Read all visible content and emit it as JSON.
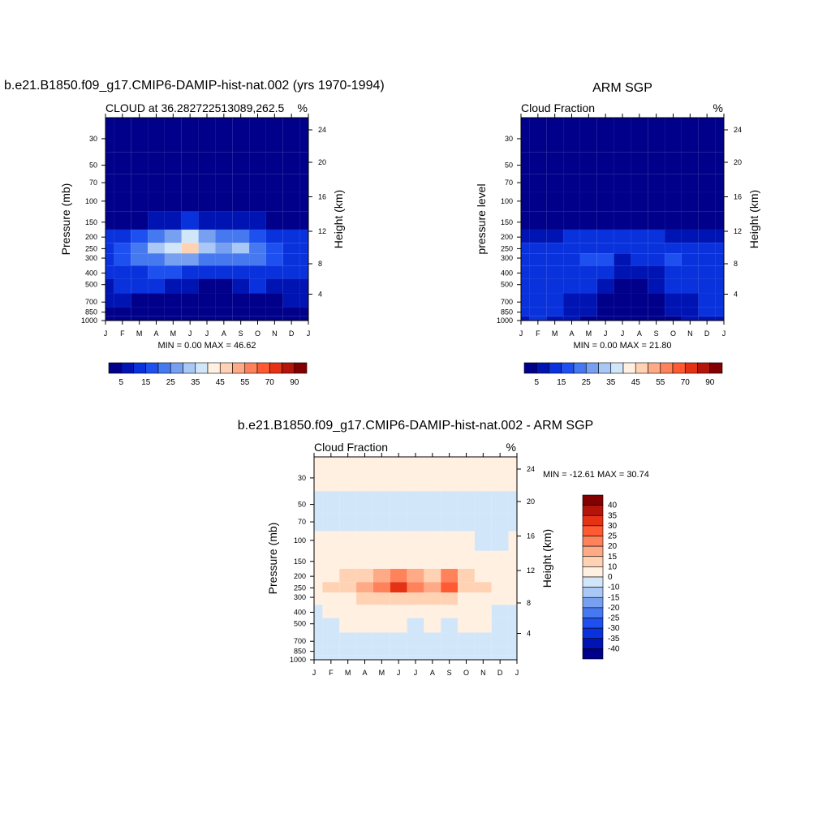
{
  "chart_data": [
    {
      "type": "heatmap",
      "panel": "model",
      "title": "b.e21.B1850.f09_g17.CMIP6-DAMIP-hist-nat.002 (yrs 1970-1994)",
      "subtitle": "CLOUD at 36.282722513089,262.5",
      "units": "%",
      "xlabel": "",
      "ylabel_left": "Pressure (mb)",
      "ylabel_right": "Height (km)",
      "x_ticks": [
        "J",
        "F",
        "M",
        "A",
        "M",
        "J",
        "J",
        "A",
        "S",
        "O",
        "N",
        "D",
        "J"
      ],
      "y_ticks_left": [
        "30",
        "50",
        "70",
        "100",
        "150",
        "200",
        "250",
        "300",
        "400",
        "500",
        "700",
        "850",
        "1000"
      ],
      "y_ticks_right": [
        "24",
        "20",
        "16",
        "12",
        "8",
        "4"
      ],
      "stats": "MIN =   0.00 MAX =  46.62",
      "min": 0.0,
      "max": 46.62,
      "colorbar_levels": [
        0,
        5,
        10,
        15,
        20,
        25,
        30,
        35,
        40,
        45,
        50,
        55,
        60,
        70,
        80,
        90
      ],
      "colorbar_labels": [
        "5",
        "15",
        "25",
        "35",
        "45",
        "55",
        "70",
        "90"
      ],
      "colorbar_colors": [
        "#00008a",
        "#0014b4",
        "#0a32dc",
        "#1e50f0",
        "#4678f0",
        "#78a0f0",
        "#aac8f5",
        "#d2e6fa",
        "#fff0e1",
        "#ffd2b4",
        "#ffaa87",
        "#ff825a",
        "#ff5a32",
        "#e63214",
        "#b4140a",
        "#820000"
      ],
      "months": [
        "J",
        "F",
        "M",
        "A",
        "M",
        "J",
        "J",
        "A",
        "S",
        "O",
        "N",
        "D",
        "J"
      ],
      "levels_mb": [
        30,
        50,
        70,
        100,
        150,
        200,
        250,
        300,
        400,
        500,
        700,
        850,
        1000
      ],
      "values": [
        [
          0,
          0,
          0,
          0,
          0,
          0,
          0,
          0,
          0,
          0,
          0,
          0,
          0
        ],
        [
          0,
          0,
          0,
          0,
          0,
          0,
          0,
          0,
          0,
          0,
          0,
          0,
          0
        ],
        [
          0,
          0,
          0,
          0,
          0,
          0,
          0,
          0,
          0,
          0,
          0,
          0,
          0
        ],
        [
          0,
          0,
          0,
          0,
          0,
          0,
          0,
          0,
          0,
          0,
          0,
          0,
          0
        ],
        [
          3,
          3,
          4,
          6,
          8,
          10,
          9,
          7,
          8,
          6,
          4,
          3,
          3
        ],
        [
          12,
          14,
          18,
          22,
          28,
          35,
          25,
          20,
          22,
          18,
          14,
          12,
          12
        ],
        [
          14,
          18,
          24,
          30,
          38,
          45,
          32,
          26,
          30,
          22,
          18,
          14,
          14
        ],
        [
          12,
          16,
          20,
          24,
          28,
          28,
          24,
          20,
          22,
          20,
          16,
          12,
          12
        ],
        [
          10,
          12,
          14,
          16,
          16,
          14,
          10,
          10,
          12,
          14,
          12,
          10,
          10
        ],
        [
          8,
          10,
          10,
          10,
          8,
          6,
          4,
          4,
          6,
          10,
          8,
          8,
          8
        ],
        [
          6,
          6,
          4,
          4,
          2,
          2,
          1,
          1,
          2,
          4,
          4,
          6,
          6
        ],
        [
          4,
          4,
          3,
          3,
          2,
          2,
          1,
          1,
          1,
          3,
          3,
          4,
          4
        ],
        [
          2,
          2,
          2,
          2,
          1,
          1,
          1,
          1,
          1,
          2,
          2,
          2,
          2
        ]
      ]
    },
    {
      "type": "heatmap",
      "panel": "obs",
      "title": "ARM SGP",
      "subtitle": "Cloud Fraction",
      "units": "%",
      "xlabel": "",
      "ylabel_left": "pressure level",
      "ylabel_right": "Height (km)",
      "x_ticks": [
        "J",
        "F",
        "M",
        "A",
        "M",
        "J",
        "J",
        "A",
        "S",
        "O",
        "N",
        "D",
        "J"
      ],
      "y_ticks_left": [
        "30",
        "50",
        "70",
        "100",
        "150",
        "200",
        "250",
        "300",
        "400",
        "500",
        "700",
        "850",
        "1000"
      ],
      "y_ticks_right": [
        "24",
        "20",
        "16",
        "12",
        "8",
        "4"
      ],
      "stats": "MIN =   0.00 MAX =  21.80",
      "min": 0.0,
      "max": 21.8,
      "colorbar_levels": [
        0,
        5,
        10,
        15,
        20,
        25,
        30,
        35,
        40,
        45,
        50,
        55,
        60,
        70,
        80,
        90
      ],
      "colorbar_labels": [
        "5",
        "15",
        "25",
        "35",
        "45",
        "55",
        "70",
        "90"
      ],
      "colorbar_colors": [
        "#00008a",
        "#0014b4",
        "#0a32dc",
        "#1e50f0",
        "#4678f0",
        "#78a0f0",
        "#aac8f5",
        "#d2e6fa",
        "#fff0e1",
        "#ffd2b4",
        "#ffaa87",
        "#ff825a",
        "#ff5a32",
        "#e63214",
        "#b4140a",
        "#820000"
      ],
      "months": [
        "J",
        "F",
        "M",
        "A",
        "M",
        "J",
        "J",
        "A",
        "S",
        "O",
        "N",
        "D",
        "J"
      ],
      "levels_mb": [
        30,
        50,
        70,
        100,
        150,
        200,
        250,
        300,
        400,
        500,
        700,
        850,
        1000
      ],
      "values": [
        [
          0,
          0,
          0,
          0,
          0,
          0,
          0,
          0,
          0,
          0,
          0,
          0,
          0
        ],
        [
          0,
          0,
          0,
          0,
          0,
          0,
          0,
          0,
          0,
          0,
          0,
          0,
          0
        ],
        [
          0,
          0,
          0,
          0,
          0,
          0,
          0,
          0,
          0,
          0,
          0,
          0,
          0
        ],
        [
          0,
          0,
          0,
          0,
          0,
          0,
          0,
          0,
          0,
          0,
          0,
          0,
          0
        ],
        [
          1,
          1,
          1,
          1,
          2,
          2,
          2,
          2,
          1,
          1,
          1,
          1,
          1
        ],
        [
          8,
          6,
          8,
          10,
          12,
          12,
          10,
          10,
          10,
          8,
          8,
          8,
          8
        ],
        [
          12,
          10,
          12,
          14,
          14,
          14,
          12,
          12,
          12,
          12,
          10,
          12,
          12
        ],
        [
          14,
          12,
          14,
          14,
          16,
          16,
          8,
          10,
          12,
          16,
          12,
          14,
          14
        ],
        [
          12,
          12,
          12,
          12,
          14,
          12,
          6,
          6,
          8,
          14,
          12,
          12,
          12
        ],
        [
          10,
          10,
          12,
          12,
          10,
          8,
          4,
          4,
          6,
          10,
          10,
          10,
          10
        ],
        [
          10,
          12,
          10,
          8,
          6,
          4,
          3,
          3,
          4,
          8,
          8,
          10,
          10
        ],
        [
          12,
          14,
          10,
          8,
          6,
          4,
          3,
          3,
          4,
          6,
          8,
          10,
          12
        ],
        [
          8,
          10,
          8,
          6,
          4,
          3,
          2,
          2,
          3,
          4,
          6,
          8,
          8
        ]
      ]
    },
    {
      "type": "heatmap",
      "panel": "diff",
      "title": "b.e21.B1850.f09_g17.CMIP6-DAMIP-hist-nat.002 - ARM SGP",
      "subtitle": "Cloud Fraction",
      "units": "%",
      "xlabel": "",
      "ylabel_left": "Pressure (mb)",
      "ylabel_right": "Height (km)",
      "x_ticks": [
        "J",
        "F",
        "M",
        "A",
        "M",
        "J",
        "J",
        "A",
        "S",
        "O",
        "N",
        "D",
        "J"
      ],
      "y_ticks_left": [
        "30",
        "50",
        "70",
        "100",
        "150",
        "200",
        "250",
        "300",
        "400",
        "500",
        "700",
        "850",
        "1000"
      ],
      "y_ticks_right": [
        "24",
        "20",
        "16",
        "12",
        "8",
        "4"
      ],
      "stats": "MIN = -12.61 MAX =  30.74",
      "min": -12.61,
      "max": 30.74,
      "colorbar_levels": [
        -45,
        -40,
        -35,
        -30,
        -25,
        -20,
        -15,
        -10,
        0,
        10,
        15,
        20,
        25,
        30,
        35,
        40,
        45
      ],
      "colorbar_labels": [
        "40",
        "35",
        "30",
        "25",
        "20",
        "15",
        "10",
        "0",
        "-10",
        "-15",
        "-20",
        "-25",
        "-30",
        "-35",
        "-40"
      ],
      "colorbar_colors": [
        "#00008a",
        "#0014b4",
        "#0a32dc",
        "#1e50f0",
        "#4678f0",
        "#78a0f0",
        "#aac8f5",
        "#d2e6fa",
        "#fff0e1",
        "#ffd2b4",
        "#ffaa87",
        "#ff825a",
        "#ff5a32",
        "#e63214",
        "#b4140a",
        "#820000"
      ],
      "months": [
        "J",
        "F",
        "M",
        "A",
        "M",
        "J",
        "J",
        "A",
        "S",
        "O",
        "N",
        "D",
        "J"
      ],
      "levels_mb": [
        30,
        50,
        70,
        100,
        150,
        200,
        250,
        300,
        400,
        500,
        700,
        850,
        1000
      ],
      "values": [
        [
          2,
          2,
          2,
          2,
          2,
          2,
          2,
          2,
          2,
          2,
          2,
          2,
          2
        ],
        [
          -3,
          -3,
          -3,
          -3,
          -3,
          -3,
          -3,
          -3,
          -3,
          -3,
          -3,
          -3,
          -3
        ],
        [
          -3,
          -3,
          -3,
          -3,
          -3,
          -3,
          -3,
          -3,
          -3,
          -3,
          -3,
          -3,
          -3
        ],
        [
          2,
          2,
          2,
          2,
          2,
          2,
          2,
          2,
          2,
          2,
          -3,
          -3,
          2
        ],
        [
          2,
          2,
          2,
          2,
          4,
          6,
          6,
          4,
          5,
          4,
          2,
          2,
          2
        ],
        [
          4,
          8,
          10,
          12,
          16,
          24,
          18,
          14,
          20,
          12,
          8,
          4,
          4
        ],
        [
          6,
          10,
          14,
          18,
          24,
          30,
          22,
          18,
          26,
          14,
          10,
          6,
          6
        ],
        [
          2,
          4,
          6,
          10,
          12,
          12,
          10,
          10,
          12,
          8,
          6,
          2,
          2
        ],
        [
          -2,
          2,
          2,
          4,
          4,
          2,
          2,
          2,
          2,
          2,
          2,
          -2,
          -2
        ],
        [
          -3,
          -3,
          2,
          2,
          2,
          2,
          -2,
          2,
          -3,
          2,
          2,
          -2,
          -2
        ],
        [
          -3,
          -4,
          -3,
          -3,
          -3,
          -2,
          -2,
          -2,
          -3,
          -3,
          -3,
          -3,
          -3
        ],
        [
          -3,
          -4,
          -4,
          -3,
          -3,
          -2,
          -2,
          -2,
          -3,
          -3,
          -3,
          -3,
          -3
        ],
        [
          -2,
          -2,
          -2,
          -2,
          -2,
          -2,
          -2,
          -2,
          -2,
          -2,
          -2,
          -2,
          -2
        ]
      ]
    }
  ]
}
